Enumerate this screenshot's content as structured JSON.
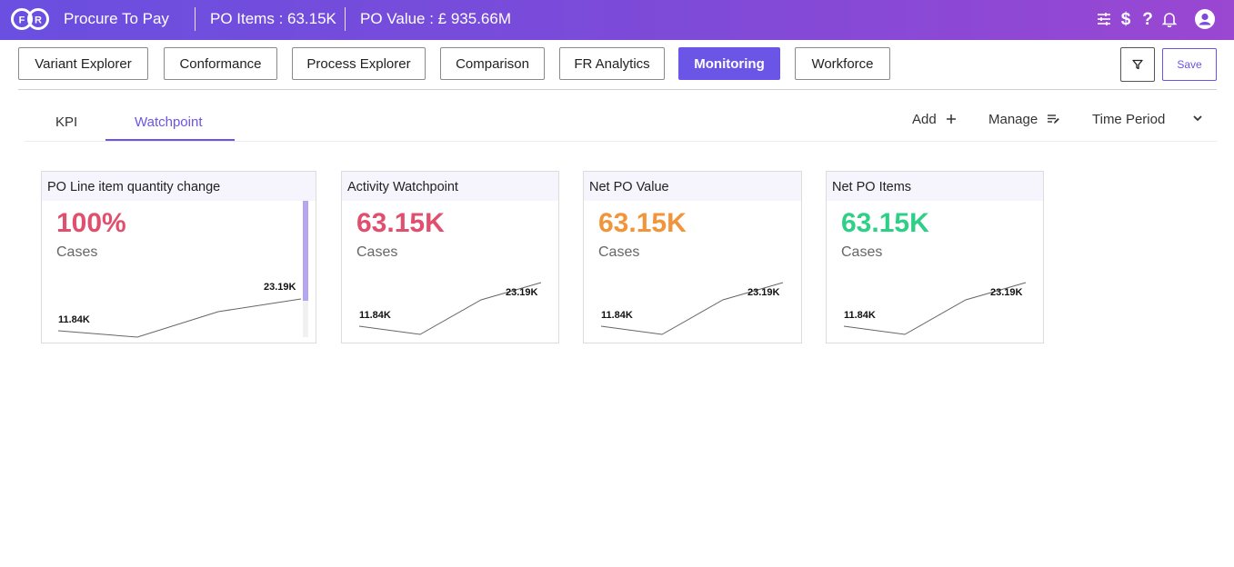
{
  "header": {
    "app_title": "Procure To Pay",
    "po_items": "PO Items : 63.15K",
    "po_value": "PO Value : £ 935.66M",
    "logo_letters": [
      "F",
      "R"
    ],
    "icons": [
      "sliders-icon",
      "dollar-icon",
      "help-icon",
      "bell-icon",
      "user-avatar-icon"
    ]
  },
  "nav": {
    "tabs": [
      {
        "label": "Variant Explorer",
        "active": false
      },
      {
        "label": "Conformance",
        "active": false
      },
      {
        "label": "Process Explorer",
        "active": false
      },
      {
        "label": "Comparison",
        "active": false
      },
      {
        "label": "FR Analytics",
        "active": false
      },
      {
        "label": "Monitoring",
        "active": true
      },
      {
        "label": "Workforce",
        "active": false
      }
    ],
    "filter_icon": "filter-icon",
    "save_label": "Save"
  },
  "subtabs": {
    "items": [
      {
        "label": "KPI",
        "active": false
      },
      {
        "label": "Watchpoint",
        "active": true
      }
    ],
    "add_label": "Add",
    "manage_label": "Manage",
    "time_period_label": "Time Period"
  },
  "colors": {
    "accent": "#6a55e6",
    "header_start": "#6a4fe0",
    "header_end": "#9a47d2",
    "value_pink": "#e0506e",
    "value_orange": "#f0953a",
    "value_green": "#2ecf86"
  },
  "cards": [
    {
      "title": "PO Line item quantity change",
      "value": "100%",
      "label": "Cases",
      "min_label": "11.84K",
      "max_label": "23.19K",
      "color": "#e0506e",
      "scrollbar": true
    },
    {
      "title": "Activity Watchpoint",
      "value": "63.15K",
      "label": "Cases",
      "min_label": "11.84K",
      "max_label": "23.19K",
      "color": "#e0506e",
      "scrollbar": false
    },
    {
      "title": "Net PO Value",
      "value": "63.15K",
      "label": "Cases",
      "min_label": "11.84K",
      "max_label": "23.19K",
      "color": "#f0953a",
      "scrollbar": false
    },
    {
      "title": "Net PO Items",
      "value": "63.15K",
      "label": "Cases",
      "min_label": "11.84K",
      "max_label": "23.19K",
      "color": "#2ecf86",
      "scrollbar": false
    }
  ]
}
